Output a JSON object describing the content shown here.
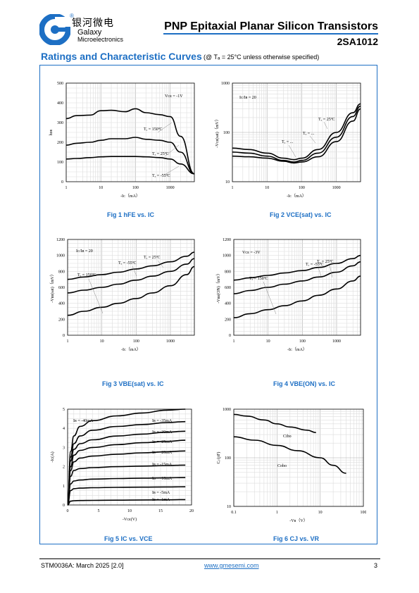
{
  "header": {
    "logo_cn": "银河微电",
    "logo_reg": "®",
    "logo_en_1": "Galaxy",
    "logo_en_2": "Microelectronics",
    "title": "PNP Epitaxial Planar Silicon Transistors",
    "part_number": "2SA1012"
  },
  "section": {
    "title": "Ratings and Characteristic Curves",
    "note": "(@ Tₐ = 25°C unless otherwise specified)"
  },
  "colors": {
    "accent": "#1d6fc4",
    "curve": "#000000",
    "grid": "#c8c8c8"
  },
  "figures": [
    {
      "caption": "Fig 1    hFE vs. IC",
      "chart_data": {
        "type": "line",
        "xscale": "log",
        "yscale": "linear",
        "xlim": [
          1,
          5000
        ],
        "ylim": [
          0,
          500
        ],
        "xticks": [
          "1",
          "10",
          "100",
          "1000"
        ],
        "yticks": [
          "0",
          "100",
          "200",
          "300",
          "400",
          "500"
        ],
        "xlabel": "-Iᴄ（mA）",
        "ylabel": "hᴅᴇ",
        "annotations": [
          "Vᴄᴇ = -1V",
          "Tₐ = 150ºC",
          "Tₐ = 25ºC",
          "Tₐ = -55ºC"
        ],
        "series": [
          {
            "name": "Tₐ = 150ºC",
            "x": [
              1,
              2,
              5,
              10,
              20,
              50,
              100,
              200,
              500,
              1000,
              2000,
              5000
            ],
            "y": [
              320,
              335,
              338,
              360,
              362,
              355,
              370,
              350,
              340,
              330,
              230,
              40
            ]
          },
          {
            "name": "Tₐ = 25ºC",
            "x": [
              1,
              2,
              5,
              10,
              20,
              50,
              100,
              200,
              500,
              1000,
              2000,
              5000
            ],
            "y": [
              185,
              195,
              200,
              210,
              218,
              218,
              225,
              215,
              210,
              200,
              150,
              40
            ]
          },
          {
            "name": "Tₐ = -55ºC",
            "x": [
              1,
              2,
              5,
              10,
              20,
              50,
              100,
              200,
              500,
              1000,
              2000,
              5000
            ],
            "y": [
              115,
              118,
              122,
              126,
              128,
              128,
              128,
              126,
              122,
              115,
              90,
              40
            ]
          }
        ]
      }
    },
    {
      "caption": "Fig 2    VCE(sat) vs. IC",
      "chart_data": {
        "type": "line",
        "xscale": "log",
        "yscale": "log",
        "xlim": [
          1,
          5000
        ],
        "ylim": [
          10,
          1000
        ],
        "xticks": [
          "1",
          "10",
          "100",
          "1000"
        ],
        "yticks": [
          "10",
          "100",
          "1000"
        ],
        "xlabel": "-Iᴄ（mA）",
        "ylabel": "-Vᴄᴇ(sat)（mV）",
        "annotations": [
          "Iᴄ/Iʙ = 20",
          "Tₐ = 25ºC",
          "Tₐ = ...",
          "Tₐ = ..."
        ],
        "series": [
          {
            "name": "Tₐ = 25ºC",
            "x": [
              1,
              3,
              10,
              30,
              60,
              100,
              300,
              1000,
              3000,
              5000
            ],
            "y": [
              48,
              45,
              38,
              30,
              28,
              30,
              45,
              100,
              250,
              380
            ]
          },
          {
            "name": "Tₐ = ...",
            "x": [
              1,
              3,
              10,
              30,
              60,
              100,
              300,
              1000,
              3000,
              5000
            ],
            "y": [
              40,
              38,
              33,
              27,
              25,
              27,
              38,
              80,
              210,
              340
            ]
          },
          {
            "name": "Tₐ = ...",
            "x": [
              1,
              3,
              10,
              30,
              60,
              100,
              300,
              1000,
              3000,
              5000
            ],
            "y": [
              33,
              32,
              30,
              26,
              24,
              25,
              32,
              65,
              170,
              300
            ]
          }
        ]
      }
    },
    {
      "caption": "Fig 3    VBE(sat) vs. IC",
      "chart_data": {
        "type": "line",
        "xscale": "log",
        "yscale": "linear",
        "xlim": [
          1,
          5000
        ],
        "ylim": [
          0,
          1200
        ],
        "xticks": [
          "1",
          "10",
          "100",
          "1000"
        ],
        "yticks": [
          "0",
          "200",
          "400",
          "600",
          "800",
          "1000",
          "1200"
        ],
        "xlabel": "-Iᴄ（mA）",
        "ylabel": "-Vʙᴇ(sat)（mV）",
        "annotations": [
          "Iᴄ/Iʙ = 20",
          "Tₐ = 150ºC",
          "Tₐ = -55ºC",
          "Tₐ = 25ºC"
        ],
        "series": [
          {
            "name": "Tₐ = -55ºC",
            "x": [
              1,
              3,
              10,
              30,
              100,
              300,
              1000,
              3000,
              5000
            ],
            "y": [
              700,
              730,
              760,
              790,
              830,
              870,
              920,
              990,
              1040
            ]
          },
          {
            "name": "Tₐ = 25ºC",
            "x": [
              1,
              3,
              10,
              30,
              100,
              300,
              1000,
              3000,
              5000
            ],
            "y": [
              530,
              565,
              600,
              640,
              690,
              740,
              800,
              890,
              960
            ]
          },
          {
            "name": "Tₐ = 150ºC",
            "x": [
              1,
              3,
              10,
              30,
              100,
              300,
              1000,
              3000,
              5000
            ],
            "y": [
              250,
              300,
              350,
              400,
              460,
              530,
              620,
              760,
              860
            ]
          }
        ]
      }
    },
    {
      "caption": "Fig 4    VBE(ON) vs. IC",
      "chart_data": {
        "type": "line",
        "xscale": "log",
        "yscale": "linear",
        "xlim": [
          1,
          5000
        ],
        "ylim": [
          0,
          1200
        ],
        "xticks": [
          "1",
          "10",
          "100",
          "1000"
        ],
        "yticks": [
          "0",
          "200",
          "400",
          "600",
          "800",
          "1000",
          "1200"
        ],
        "xlabel": "-Iᴄ（mA）",
        "ylabel": "-Vʙᴇ(ON)（mV）",
        "annotations": [
          "Vᴄᴇ = -3V",
          "Tₐ = 150ºC",
          "Tₐ = -55ºC",
          "Tₐ = 25ºC"
        ],
        "series": [
          {
            "name": "Tₐ = -55ºC",
            "x": [
              1,
              3,
              10,
              30,
              100,
              300,
              1000,
              3000,
              5000
            ],
            "y": [
              690,
              720,
              750,
              780,
              810,
              850,
              900,
              960,
              1000
            ]
          },
          {
            "name": "Tₐ = 25ºC",
            "x": [
              1,
              3,
              10,
              30,
              100,
              300,
              1000,
              3000,
              5000
            ],
            "y": [
              520,
              560,
              600,
              640,
              680,
              730,
              790,
              870,
              920
            ]
          },
          {
            "name": "Tₐ = 150ºC",
            "x": [
              1,
              3,
              10,
              30,
              100,
              300,
              1000,
              3000,
              5000
            ],
            "y": [
              220,
              270,
              320,
              370,
              430,
              500,
              580,
              680,
              740
            ]
          }
        ]
      }
    },
    {
      "caption": "Fig 5    IC vs. VCE",
      "chart_data": {
        "type": "line",
        "xscale": "linear",
        "yscale": "linear",
        "xlim": [
          0,
          20
        ],
        "ylim": [
          0,
          5
        ],
        "xticks": [
          "0",
          "5",
          "10",
          "15",
          "20"
        ],
        "yticks": [
          "0",
          "1",
          "2",
          "3",
          "4",
          "5"
        ],
        "xlabel": "-Vᴄᴇ(V)",
        "ylabel": "-Iᴄ(A)",
        "series": [
          {
            "name": "Iʙ = -40mA",
            "x": [
              0,
              0.5,
              1,
              2,
              4,
              8,
              12,
              16,
              19
            ],
            "y": [
              0,
              2.8,
              3.6,
              4.1,
              4.4,
              4.65,
              4.8,
              4.95,
              5.0
            ]
          },
          {
            "name": "Iʙ = -35mA",
            "x": [
              0,
              0.5,
              1,
              2,
              4,
              8,
              12,
              16,
              19
            ],
            "y": [
              0,
              2.5,
              3.2,
              3.6,
              3.9,
              4.1,
              4.2,
              4.3,
              4.35
            ]
          },
          {
            "name": "Iʙ = -30mA",
            "x": [
              0,
              0.5,
              1,
              2,
              4,
              8,
              12,
              16,
              19
            ],
            "y": [
              0,
              2.3,
              2.9,
              3.2,
              3.4,
              3.6,
              3.7,
              3.8,
              3.85
            ]
          },
          {
            "name": "Iʙ = -25mA",
            "x": [
              0,
              0.5,
              1,
              2,
              4,
              8,
              12,
              16,
              19
            ],
            "y": [
              0,
              2.0,
              2.6,
              2.85,
              3.0,
              3.15,
              3.25,
              3.32,
              3.38
            ]
          },
          {
            "name": "Iʙ = -20mA",
            "x": [
              0,
              0.5,
              1,
              2,
              4,
              8,
              12,
              16,
              19
            ],
            "y": [
              0,
              1.8,
              2.25,
              2.45,
              2.55,
              2.65,
              2.72,
              2.78,
              2.82
            ]
          },
          {
            "name": "Iʙ = -15mA",
            "x": [
              0,
              0.5,
              1,
              2,
              4,
              8,
              12,
              16,
              19
            ],
            "y": [
              0,
              1.5,
              1.8,
              1.9,
              1.95,
              2.0,
              2.03,
              2.06,
              2.08
            ]
          },
          {
            "name": "Iʙ = -10mA",
            "x": [
              0,
              0.5,
              1,
              2,
              4,
              8,
              12,
              16,
              19
            ],
            "y": [
              0,
              1.1,
              1.25,
              1.3,
              1.35,
              1.38,
              1.4,
              1.42,
              1.43
            ]
          },
          {
            "name": "Iʙ = -5mA",
            "x": [
              0,
              0.5,
              1,
              2,
              4,
              8,
              12,
              16,
              19
            ],
            "y": [
              0,
              0.75,
              0.85,
              0.88,
              0.9,
              0.92,
              0.93,
              0.94,
              0.95
            ]
          },
          {
            "name": "Iʙ = -1mA",
            "x": [
              0,
              0.5,
              1,
              2,
              4,
              8,
              12,
              16,
              19
            ],
            "y": [
              0,
              0.2,
              0.22,
              0.23,
              0.24,
              0.25,
              0.26,
              0.27,
              0.28
            ]
          }
        ]
      }
    },
    {
      "caption": "Fig 6    CJ vs. VR",
      "chart_data": {
        "type": "line",
        "xscale": "log",
        "yscale": "log",
        "xlim": [
          0.1,
          100
        ],
        "ylim": [
          10,
          1000
        ],
        "xticks": [
          "0.1",
          "1",
          "10",
          "100"
        ],
        "yticks": [
          "10",
          "100",
          "1000"
        ],
        "xlabel": "-Vʀ（V）",
        "ylabel": "Cⱼ (pF)",
        "series": [
          {
            "name": "Cibo",
            "x": [
              0.1,
              0.2,
              0.5,
              1,
              2,
              5,
              8
            ],
            "y": [
              780,
              720,
              600,
              500,
              430,
              370,
              330
            ]
          },
          {
            "name": "Cobo",
            "x": [
              0.1,
              0.3,
              1,
              3,
              10,
              20,
              40
            ],
            "y": [
              270,
              230,
              180,
              140,
              100,
              70,
              48
            ]
          }
        ]
      }
    }
  ],
  "footer": {
    "left": "STM0036A: March 2025 [2.0]",
    "link": "www.gmesemi.com",
    "page": "3"
  }
}
